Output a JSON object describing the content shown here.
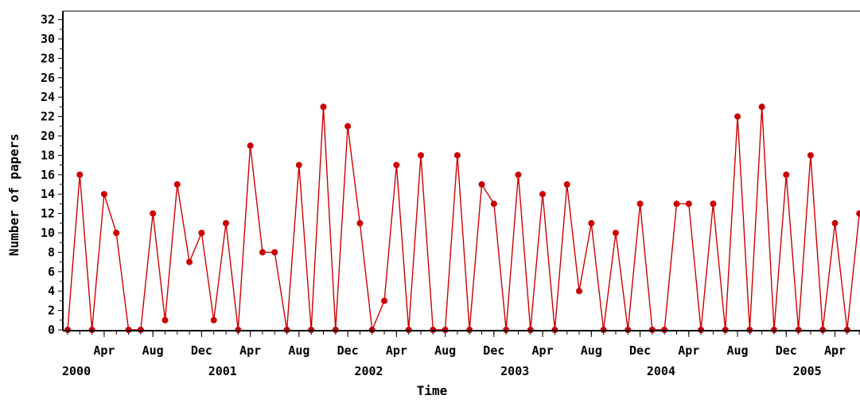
{
  "chart_data": {
    "type": "line",
    "title": "",
    "xlabel": "Time",
    "ylabel": "Number of papers",
    "ylim": [
      0,
      32
    ],
    "yticks": [
      "0",
      "2",
      "4",
      "6",
      "8",
      "10",
      "12",
      "14",
      "16",
      "18",
      "20",
      "22",
      "24",
      "26",
      "28",
      "30",
      "32"
    ],
    "x_start": "2000-01",
    "month_ticks": [
      {
        "month_index": 3,
        "label": "Apr"
      },
      {
        "month_index": 7,
        "label": "Aug"
      },
      {
        "month_index": 11,
        "label": "Dec"
      },
      {
        "month_index": 15,
        "label": "Apr"
      },
      {
        "month_index": 19,
        "label": "Aug"
      },
      {
        "month_index": 23,
        "label": "Dec"
      },
      {
        "month_index": 27,
        "label": "Apr"
      },
      {
        "month_index": 31,
        "label": "Aug"
      },
      {
        "month_index": 35,
        "label": "Dec"
      },
      {
        "month_index": 39,
        "label": "Apr"
      },
      {
        "month_index": 43,
        "label": "Aug"
      },
      {
        "month_index": 47,
        "label": "Dec"
      },
      {
        "month_index": 51,
        "label": "Apr"
      },
      {
        "month_index": 55,
        "label": "Aug"
      },
      {
        "month_index": 59,
        "label": "Dec"
      },
      {
        "month_index": 63,
        "label": "Apr"
      }
    ],
    "year_labels": [
      {
        "month_index": 0,
        "label": "2000"
      },
      {
        "month_index": 12,
        "label": "2001"
      },
      {
        "month_index": 24,
        "label": "2002"
      },
      {
        "month_index": 36,
        "label": "2003"
      },
      {
        "month_index": 48,
        "label": "2004"
      },
      {
        "month_index": 60,
        "label": "2005"
      }
    ],
    "x_end_month_index": 65.5,
    "series": [
      {
        "color": "#cc0000",
        "points": [
          [
            0,
            0
          ],
          [
            1,
            16
          ],
          [
            2,
            0
          ],
          [
            3,
            14
          ],
          [
            4,
            10
          ],
          [
            5,
            0
          ],
          [
            6,
            0
          ],
          [
            7,
            12
          ],
          [
            8,
            1
          ],
          [
            9,
            15
          ],
          [
            10,
            7
          ],
          [
            11,
            10
          ],
          [
            12,
            1
          ],
          [
            13,
            11
          ],
          [
            14,
            0
          ],
          [
            15,
            19
          ],
          [
            16,
            8
          ],
          [
            17,
            8
          ],
          [
            18,
            0
          ],
          [
            19,
            17
          ],
          [
            20,
            0
          ],
          [
            21,
            23
          ],
          [
            22,
            0
          ],
          [
            23,
            21
          ],
          [
            24,
            11
          ],
          [
            25,
            0
          ],
          [
            26,
            3
          ],
          [
            27,
            17
          ],
          [
            28,
            0
          ],
          [
            29,
            18
          ],
          [
            30,
            0
          ],
          [
            31,
            0
          ],
          [
            32,
            18
          ],
          [
            33,
            0
          ],
          [
            34,
            15
          ],
          [
            35,
            13
          ],
          [
            36,
            0
          ],
          [
            37,
            16
          ],
          [
            38,
            0
          ],
          [
            39,
            14
          ],
          [
            40,
            0
          ],
          [
            41,
            15
          ],
          [
            42,
            4
          ],
          [
            43,
            11
          ],
          [
            44,
            0
          ],
          [
            45,
            10
          ],
          [
            46,
            0
          ],
          [
            47,
            13
          ],
          [
            48,
            0
          ],
          [
            49,
            0
          ],
          [
            50,
            13
          ],
          [
            51,
            13
          ],
          [
            52,
            0
          ],
          [
            53,
            13
          ],
          [
            54,
            0
          ],
          [
            55,
            22
          ],
          [
            56,
            0
          ],
          [
            57,
            23
          ],
          [
            58,
            0
          ],
          [
            59,
            16
          ],
          [
            60,
            0
          ],
          [
            61,
            18
          ],
          [
            62,
            0
          ],
          [
            63,
            11
          ],
          [
            64,
            0
          ],
          [
            65,
            12
          ]
        ]
      }
    ]
  }
}
